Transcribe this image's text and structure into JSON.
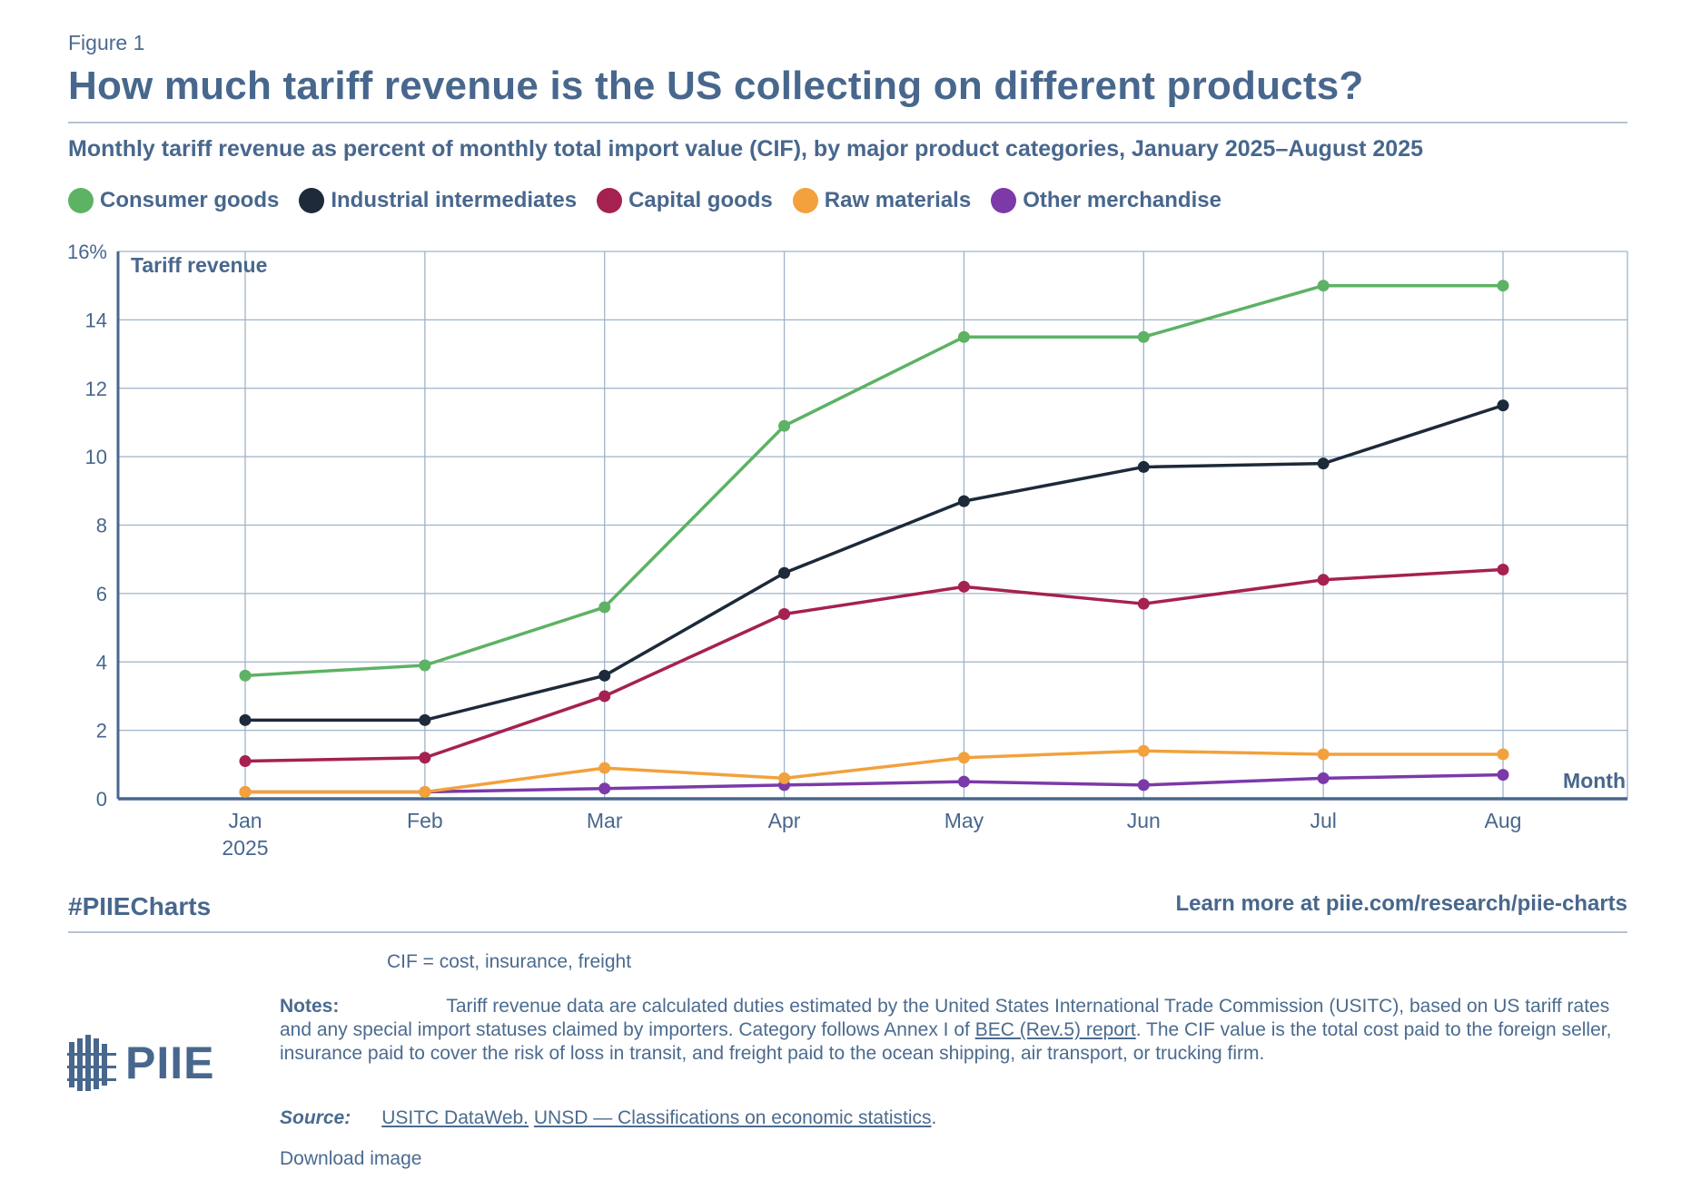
{
  "figure_label": "Figure 1",
  "title": "How much tariff revenue is the US collecting on different products?",
  "subtitle": "Monthly tariff revenue as percent of monthly total import value (CIF), by major product categories, January 2025–August 2025",
  "colors": {
    "consumer": "#5db264",
    "industrial": "#1c2a3a",
    "capital": "#a52150",
    "raw": "#f2a13c",
    "other": "#7b3aa8",
    "grid": "#9fb3c8",
    "text": "#48678d"
  },
  "chart_data": {
    "type": "line",
    "title": "How much tariff revenue is the US collecting on different products?",
    "ylabel": "Tariff revenue",
    "xlabel": "Month",
    "ylim": [
      0,
      16
    ],
    "yticks": [
      0,
      2,
      4,
      6,
      8,
      10,
      12,
      14,
      16
    ],
    "ytick_labels": [
      "0",
      "2",
      "4",
      "6",
      "8",
      "10",
      "12",
      "14",
      "16%"
    ],
    "categories": [
      "Jan",
      "Feb",
      "Mar",
      "Apr",
      "May",
      "Jun",
      "Jul",
      "Aug"
    ],
    "category_sublabels": [
      "2025",
      "",
      "",
      "",
      "",
      "",
      "",
      ""
    ],
    "grid": true,
    "series": [
      {
        "name": "Consumer goods",
        "color": "#5db264",
        "values": [
          3.6,
          3.9,
          5.6,
          10.9,
          13.5,
          13.5,
          15.0,
          15.0
        ]
      },
      {
        "name": "Industrial intermediates",
        "color": "#1c2a3a",
        "values": [
          2.3,
          2.3,
          3.6,
          6.6,
          8.7,
          9.7,
          9.8,
          11.5
        ]
      },
      {
        "name": "Capital goods",
        "color": "#a52150",
        "values": [
          1.1,
          1.2,
          3.0,
          5.4,
          6.2,
          5.7,
          6.4,
          6.7
        ]
      },
      {
        "name": "Raw materials",
        "color": "#f2a13c",
        "values": [
          0.2,
          0.2,
          0.9,
          0.6,
          1.2,
          1.4,
          1.3,
          1.3
        ]
      },
      {
        "name": "Other merchandise",
        "color": "#7b3aa8",
        "values": [
          0.2,
          0.2,
          0.3,
          0.4,
          0.5,
          0.4,
          0.6,
          0.7
        ]
      }
    ]
  },
  "footer": {
    "hashtag": "#PIIECharts",
    "learn_more": "Learn more at piie.com/research/piie-charts",
    "cif_note": "CIF = cost, insurance, freight",
    "notes_label": "Notes:",
    "notes_text_1": "Tariff revenue data are calculated duties estimated by the United States International Trade Commission (USITC), based on US tariff rates and any special import statuses claimed by importers. Category follows Annex I of ",
    "notes_link": "BEC (Rev.5) report",
    "notes_text_2": ". The CIF value is the total cost paid to the foreign seller, insurance paid to cover the risk of loss in transit, and freight paid to the ocean shipping, air transport, or trucking firm.",
    "source_label": "Source:",
    "source_link_1": "USITC DataWeb.",
    "source_link_2": "UNSD — Classifications on economic statistics",
    "source_end": ".",
    "download": "Download image",
    "logo_text": "PIIE"
  }
}
